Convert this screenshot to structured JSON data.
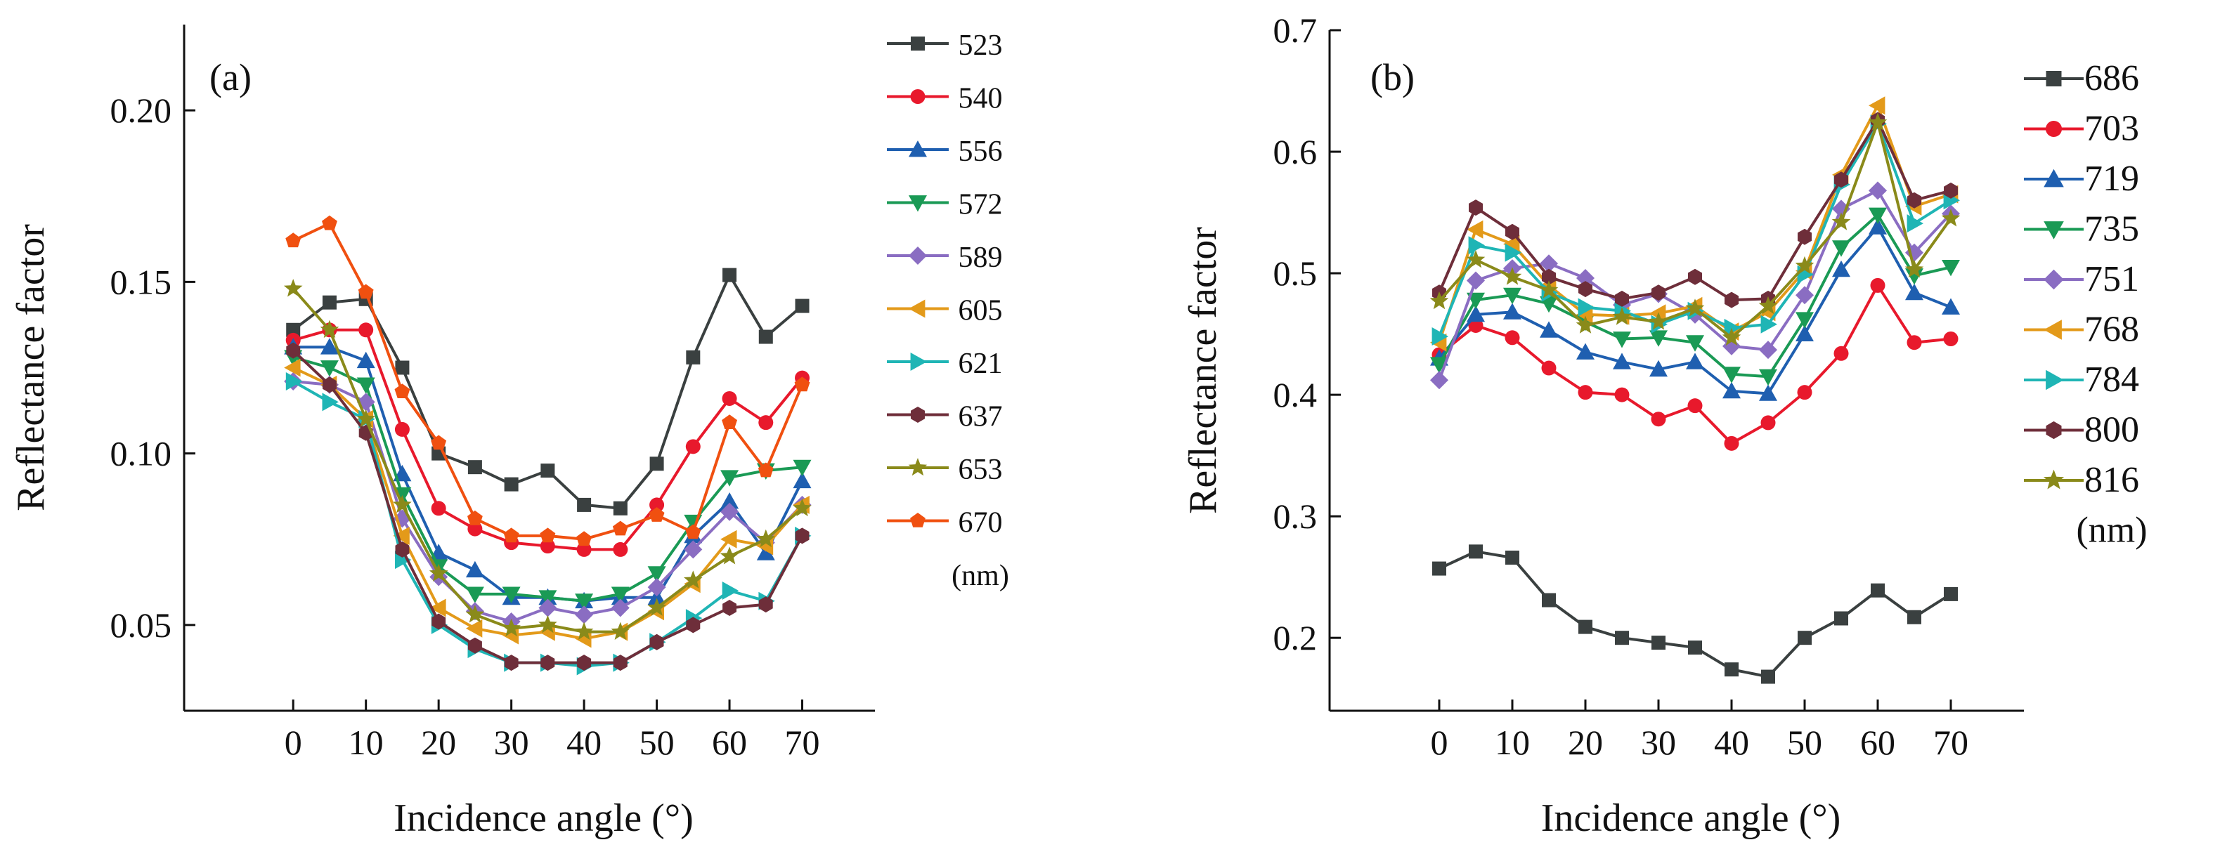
{
  "chart_data": [
    {
      "type": "line",
      "panel_label": "(a)",
      "xlabel": "Incidence angle (°)",
      "ylabel": "Reflectance factor",
      "x": [
        0,
        5,
        10,
        15,
        20,
        25,
        30,
        35,
        40,
        45,
        50,
        55,
        60,
        65,
        70
      ],
      "xlim": [
        -15,
        80
      ],
      "ylim": [
        0.025,
        0.225
      ],
      "xticks": [
        "0",
        "10",
        "20",
        "30",
        "40",
        "50",
        "60",
        "70"
      ],
      "yticks": [
        "0.05",
        "0.10",
        "0.15",
        "0.20"
      ],
      "legend_position": "right",
      "legend_unit": "(nm)",
      "series": [
        {
          "name": "523",
          "color": "#3a4040",
          "marker": "square",
          "values": [
            0.136,
            0.144,
            0.145,
            0.125,
            0.1,
            0.096,
            0.091,
            0.095,
            0.085,
            0.084,
            0.097,
            0.128,
            0.152,
            0.134,
            0.143
          ]
        },
        {
          "name": "540",
          "color": "#e8192c",
          "marker": "circle",
          "values": [
            0.133,
            0.136,
            0.136,
            0.107,
            0.084,
            0.078,
            0.074,
            0.073,
            0.072,
            0.072,
            0.085,
            0.102,
            0.116,
            0.109,
            0.122
          ]
        },
        {
          "name": "556",
          "color": "#1f5fb0",
          "marker": "triangle-up",
          "values": [
            0.131,
            0.131,
            0.127,
            0.094,
            0.071,
            0.066,
            0.058,
            0.058,
            0.057,
            0.058,
            0.058,
            0.076,
            0.086,
            0.071,
            0.092
          ]
        },
        {
          "name": "572",
          "color": "#1a9a55",
          "marker": "triangle-down",
          "values": [
            0.128,
            0.125,
            0.12,
            0.088,
            0.067,
            0.059,
            0.059,
            0.058,
            0.057,
            0.059,
            0.065,
            0.08,
            0.093,
            0.095,
            0.096
          ]
        },
        {
          "name": "589",
          "color": "#8a6dc2",
          "marker": "diamond",
          "values": [
            0.121,
            0.12,
            0.115,
            0.081,
            0.064,
            0.054,
            0.051,
            0.055,
            0.053,
            0.055,
            0.061,
            0.072,
            0.083,
            0.074,
            0.085
          ]
        },
        {
          "name": "605",
          "color": "#e39a1a",
          "marker": "triangle-left",
          "values": [
            0.125,
            0.12,
            0.11,
            0.076,
            0.055,
            0.049,
            0.047,
            0.048,
            0.046,
            0.048,
            0.054,
            0.062,
            0.075,
            0.073,
            0.085
          ]
        },
        {
          "name": "621",
          "color": "#1fb5b5",
          "marker": "triangle-right",
          "values": [
            0.121,
            0.115,
            0.11,
            0.069,
            0.05,
            0.043,
            0.039,
            0.039,
            0.038,
            0.039,
            0.045,
            0.052,
            0.06,
            0.057,
            0.076
          ]
        },
        {
          "name": "637",
          "color": "#6e2e3a",
          "marker": "hexagon",
          "values": [
            0.13,
            0.12,
            0.106,
            0.072,
            0.051,
            0.044,
            0.039,
            0.039,
            0.039,
            0.039,
            0.045,
            0.05,
            0.055,
            0.056,
            0.076
          ]
        },
        {
          "name": "653",
          "color": "#8a8a1a",
          "marker": "star",
          "values": [
            0.148,
            0.136,
            0.11,
            0.085,
            0.065,
            0.053,
            0.049,
            0.05,
            0.048,
            0.048,
            0.055,
            0.063,
            0.07,
            0.075,
            0.084
          ]
        },
        {
          "name": "670",
          "color": "#f05010",
          "marker": "pentagon",
          "values": [
            0.162,
            0.167,
            0.147,
            0.118,
            0.103,
            0.081,
            0.076,
            0.076,
            0.075,
            0.078,
            0.082,
            0.077,
            0.109,
            0.095,
            0.12
          ]
        }
      ]
    },
    {
      "type": "line",
      "panel_label": "(b)",
      "xlabel": "Incidence angle (°)",
      "ylabel": "Reflectance factor",
      "x": [
        0,
        5,
        10,
        15,
        20,
        25,
        30,
        35,
        40,
        45,
        50,
        55,
        60,
        65,
        70
      ],
      "xlim": [
        -15,
        80
      ],
      "ylim": [
        0.14,
        0.7
      ],
      "xticks": [
        "0",
        "10",
        "20",
        "30",
        "40",
        "50",
        "60",
        "70"
      ],
      "yticks": [
        "0.2",
        "0.3",
        "0.4",
        "0.5",
        "0.6",
        "0.7"
      ],
      "legend_position": "right",
      "legend_unit": "(nm)",
      "series": [
        {
          "name": "686",
          "color": "#3a4040",
          "marker": "square",
          "values": [
            0.257,
            0.271,
            0.266,
            0.231,
            0.209,
            0.2,
            0.196,
            0.192,
            0.174,
            0.168,
            0.2,
            0.216,
            0.239,
            0.217,
            0.236
          ]
        },
        {
          "name": "703",
          "color": "#e8192c",
          "marker": "circle",
          "values": [
            0.433,
            0.457,
            0.447,
            0.422,
            0.402,
            0.4,
            0.38,
            0.391,
            0.36,
            0.377,
            0.402,
            0.434,
            0.49,
            0.443,
            0.446
          ]
        },
        {
          "name": "719",
          "color": "#1f5fb0",
          "marker": "triangle-up",
          "values": [
            0.43,
            0.466,
            0.468,
            0.453,
            0.435,
            0.427,
            0.421,
            0.427,
            0.403,
            0.401,
            0.45,
            0.503,
            0.538,
            0.484,
            0.472
          ]
        },
        {
          "name": "735",
          "color": "#1a9a55",
          "marker": "triangle-down",
          "values": [
            0.425,
            0.478,
            0.482,
            0.475,
            0.46,
            0.446,
            0.447,
            0.443,
            0.417,
            0.415,
            0.462,
            0.521,
            0.548,
            0.498,
            0.505
          ]
        },
        {
          "name": "751",
          "color": "#8a6dc2",
          "marker": "diamond",
          "values": [
            0.412,
            0.494,
            0.504,
            0.508,
            0.496,
            0.474,
            0.483,
            0.466,
            0.44,
            0.437,
            0.482,
            0.553,
            0.568,
            0.517,
            0.549
          ]
        },
        {
          "name": "768",
          "color": "#e39a1a",
          "marker": "triangle-left",
          "values": [
            0.443,
            0.536,
            0.524,
            0.49,
            0.466,
            0.465,
            0.467,
            0.473,
            0.452,
            0.468,
            0.502,
            0.581,
            0.638,
            0.555,
            0.565
          ]
        },
        {
          "name": "784",
          "color": "#1fb5b5",
          "marker": "triangle-right",
          "values": [
            0.448,
            0.523,
            0.517,
            0.484,
            0.472,
            0.469,
            0.458,
            0.469,
            0.455,
            0.458,
            0.499,
            0.573,
            0.623,
            0.541,
            0.56
          ]
        },
        {
          "name": "800",
          "color": "#6e2e3a",
          "marker": "hexagon",
          "values": [
            0.484,
            0.554,
            0.534,
            0.497,
            0.487,
            0.479,
            0.484,
            0.497,
            0.478,
            0.479,
            0.53,
            0.577,
            0.626,
            0.56,
            0.568
          ]
        },
        {
          "name": "816",
          "color": "#8a8a1a",
          "marker": "star",
          "values": [
            0.477,
            0.511,
            0.497,
            0.486,
            0.457,
            0.464,
            0.46,
            0.471,
            0.447,
            0.473,
            0.506,
            0.542,
            0.624,
            0.503,
            0.545
          ]
        }
      ]
    }
  ]
}
